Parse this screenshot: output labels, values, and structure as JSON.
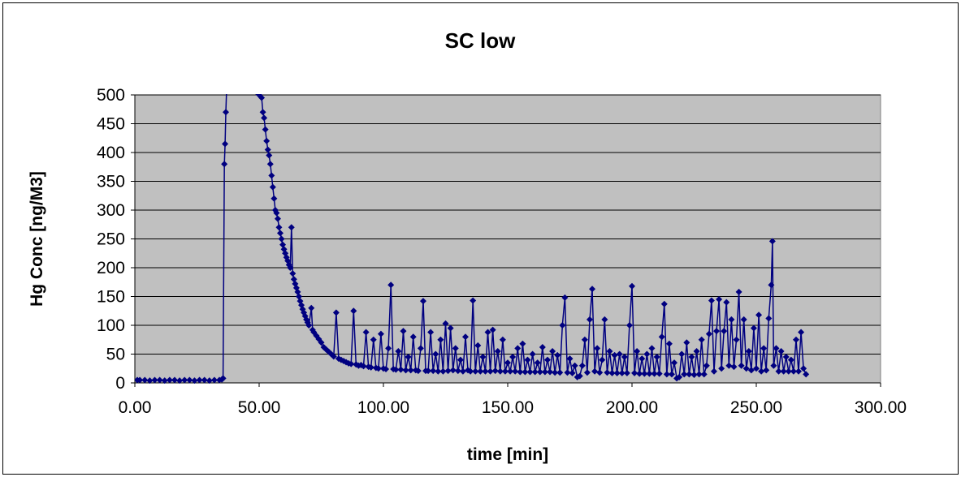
{
  "chart_data": {
    "type": "scatter",
    "title": "SC low",
    "xlabel": "time [min]",
    "ylabel": "Hg Conc [ng/M3]",
    "xlim": [
      0,
      300
    ],
    "ylim": [
      0,
      500
    ],
    "x_ticks": [
      "0.00",
      "50.00",
      "100.00",
      "150.00",
      "200.00",
      "250.00",
      "300.00"
    ],
    "y_ticks": [
      "0",
      "50",
      "100",
      "150",
      "200",
      "250",
      "300",
      "350",
      "400",
      "450",
      "500"
    ],
    "grid": "horizontal",
    "plot_background": "#c0c0c0",
    "series_color": "#000080",
    "marker": "diamond",
    "lines_connect_points": true,
    "series": [
      {
        "points": [
          [
            1,
            5
          ],
          [
            2,
            5
          ],
          [
            4,
            5
          ],
          [
            6,
            4
          ],
          [
            8,
            5
          ],
          [
            10,
            5
          ],
          [
            12,
            4
          ],
          [
            14,
            5
          ],
          [
            16,
            5
          ],
          [
            18,
            4
          ],
          [
            20,
            5
          ],
          [
            22,
            5
          ],
          [
            24,
            4
          ],
          [
            26,
            5
          ],
          [
            28,
            5
          ],
          [
            30,
            4
          ],
          [
            32,
            5
          ],
          [
            34,
            5
          ],
          [
            35,
            6
          ],
          [
            35.5,
            8
          ],
          [
            36,
            380
          ],
          [
            36.3,
            415
          ],
          [
            36.6,
            470
          ],
          [
            37,
            520
          ],
          [
            50,
            500
          ],
          [
            51,
            495
          ],
          [
            51.5,
            470
          ],
          [
            52,
            460
          ],
          [
            52.5,
            440
          ],
          [
            53,
            420
          ],
          [
            53.5,
            405
          ],
          [
            54,
            395
          ],
          [
            54.5,
            380
          ],
          [
            55,
            360
          ],
          [
            55.5,
            340
          ],
          [
            56,
            320
          ],
          [
            56.5,
            300
          ],
          [
            57,
            295
          ],
          [
            57.5,
            285
          ],
          [
            58,
            270
          ],
          [
            58.5,
            260
          ],
          [
            59,
            250
          ],
          [
            59.5,
            240
          ],
          [
            60,
            232
          ],
          [
            60.5,
            225
          ],
          [
            61,
            218
          ],
          [
            61.5,
            212
          ],
          [
            62,
            205
          ],
          [
            62.5,
            200
          ],
          [
            63,
            270
          ],
          [
            63.5,
            190
          ],
          [
            64,
            180
          ],
          [
            64.5,
            172
          ],
          [
            65,
            165
          ],
          [
            65.5,
            158
          ],
          [
            66,
            150
          ],
          [
            66.5,
            142
          ],
          [
            67,
            135
          ],
          [
            67.5,
            128
          ],
          [
            68,
            122
          ],
          [
            68.5,
            116
          ],
          [
            69,
            110
          ],
          [
            69.5,
            105
          ],
          [
            70,
            100
          ],
          [
            71,
            130
          ],
          [
            71.5,
            92
          ],
          [
            72,
            88
          ],
          [
            73,
            82
          ],
          [
            74,
            76
          ],
          [
            75,
            70
          ],
          [
            76,
            62
          ],
          [
            77,
            58
          ],
          [
            78,
            54
          ],
          [
            79,
            50
          ],
          [
            80,
            46
          ],
          [
            81,
            122
          ],
          [
            82,
            42
          ],
          [
            83,
            40
          ],
          [
            84,
            38
          ],
          [
            85,
            36
          ],
          [
            86,
            34
          ],
          [
            87,
            33
          ],
          [
            88,
            125
          ],
          [
            89,
            32
          ],
          [
            90,
            30
          ],
          [
            91,
            31
          ],
          [
            92,
            29
          ],
          [
            93,
            88
          ],
          [
            94,
            28
          ],
          [
            95,
            27
          ],
          [
            96,
            75
          ],
          [
            97,
            26
          ],
          [
            98,
            25
          ],
          [
            99,
            85
          ],
          [
            100,
            25
          ],
          [
            101,
            24
          ],
          [
            102,
            60
          ],
          [
            103,
            170
          ],
          [
            104,
            24
          ],
          [
            105,
            23
          ],
          [
            106,
            55
          ],
          [
            107,
            23
          ],
          [
            108,
            90
          ],
          [
            109,
            22
          ],
          [
            110,
            45
          ],
          [
            111,
            22
          ],
          [
            112,
            80
          ],
          [
            113,
            22
          ],
          [
            114,
            21
          ],
          [
            115,
            60
          ],
          [
            116,
            142
          ],
          [
            117,
            21
          ],
          [
            118,
            21
          ],
          [
            119,
            88
          ],
          [
            120,
            21
          ],
          [
            121,
            50
          ],
          [
            122,
            20
          ],
          [
            123,
            75
          ],
          [
            124,
            20
          ],
          [
            125,
            103
          ],
          [
            126,
            21
          ],
          [
            127,
            95
          ],
          [
            128,
            22
          ],
          [
            129,
            60
          ],
          [
            130,
            21
          ],
          [
            131,
            40
          ],
          [
            132,
            20
          ],
          [
            133,
            80
          ],
          [
            134,
            22
          ],
          [
            135,
            20
          ],
          [
            136,
            143
          ],
          [
            137,
            20
          ],
          [
            138,
            65
          ],
          [
            139,
            20
          ],
          [
            140,
            45
          ],
          [
            141,
            20
          ],
          [
            142,
            88
          ],
          [
            143,
            20
          ],
          [
            144,
            92
          ],
          [
            145,
            21
          ],
          [
            146,
            55
          ],
          [
            147,
            20
          ],
          [
            148,
            75
          ],
          [
            149,
            20
          ],
          [
            150,
            35
          ],
          [
            151,
            20
          ],
          [
            152,
            45
          ],
          [
            153,
            20
          ],
          [
            154,
            60
          ],
          [
            155,
            19
          ],
          [
            156,
            68
          ],
          [
            157,
            19
          ],
          [
            158,
            40
          ],
          [
            159,
            19
          ],
          [
            160,
            50
          ],
          [
            161,
            19
          ],
          [
            162,
            35
          ],
          [
            163,
            19
          ],
          [
            164,
            62
          ],
          [
            165,
            19
          ],
          [
            166,
            40
          ],
          [
            167,
            19
          ],
          [
            168,
            55
          ],
          [
            169,
            18
          ],
          [
            170,
            48
          ],
          [
            171,
            18
          ],
          [
            172,
            100
          ],
          [
            173,
            148
          ],
          [
            174,
            18
          ],
          [
            175,
            42
          ],
          [
            176,
            17
          ],
          [
            177,
            30
          ],
          [
            178,
            10
          ],
          [
            179,
            12
          ],
          [
            180,
            30
          ],
          [
            181,
            75
          ],
          [
            182,
            18
          ],
          [
            183,
            110
          ],
          [
            184,
            163
          ],
          [
            185,
            20
          ],
          [
            186,
            60
          ],
          [
            187,
            18
          ],
          [
            188,
            40
          ],
          [
            189,
            110
          ],
          [
            190,
            18
          ],
          [
            191,
            55
          ],
          [
            192,
            17
          ],
          [
            193,
            48
          ],
          [
            194,
            17
          ],
          [
            195,
            50
          ],
          [
            196,
            17
          ],
          [
            197,
            45
          ],
          [
            198,
            17
          ],
          [
            199,
            100
          ],
          [
            200,
            168
          ],
          [
            201,
            17
          ],
          [
            202,
            55
          ],
          [
            203,
            16
          ],
          [
            204,
            42
          ],
          [
            205,
            16
          ],
          [
            206,
            50
          ],
          [
            207,
            16
          ],
          [
            208,
            60
          ],
          [
            209,
            16
          ],
          [
            210,
            45
          ],
          [
            211,
            16
          ],
          [
            212,
            80
          ],
          [
            213,
            137
          ],
          [
            214,
            15
          ],
          [
            215,
            68
          ],
          [
            216,
            15
          ],
          [
            217,
            35
          ],
          [
            218,
            8
          ],
          [
            219,
            10
          ],
          [
            220,
            50
          ],
          [
            221,
            15
          ],
          [
            222,
            70
          ],
          [
            223,
            15
          ],
          [
            224,
            45
          ],
          [
            225,
            14
          ],
          [
            226,
            55
          ],
          [
            227,
            15
          ],
          [
            228,
            75
          ],
          [
            229,
            15
          ],
          [
            230,
            30
          ],
          [
            231,
            85
          ],
          [
            232,
            143
          ],
          [
            233,
            20
          ],
          [
            234,
            90
          ],
          [
            235,
            145
          ],
          [
            236,
            25
          ],
          [
            237,
            90
          ],
          [
            238,
            140
          ],
          [
            239,
            30
          ],
          [
            240,
            110
          ],
          [
            241,
            28
          ],
          [
            242,
            75
          ],
          [
            243,
            158
          ],
          [
            244,
            30
          ],
          [
            245,
            110
          ],
          [
            246,
            25
          ],
          [
            247,
            55
          ],
          [
            248,
            22
          ],
          [
            249,
            95
          ],
          [
            250,
            25
          ],
          [
            251,
            118
          ],
          [
            252,
            20
          ],
          [
            253,
            60
          ],
          [
            254,
            22
          ],
          [
            255,
            112
          ],
          [
            256,
            170
          ],
          [
            256.5,
            246
          ],
          [
            257,
            30
          ],
          [
            258,
            60
          ],
          [
            259,
            20
          ],
          [
            260,
            55
          ],
          [
            261,
            20
          ],
          [
            262,
            45
          ],
          [
            263,
            20
          ],
          [
            264,
            40
          ],
          [
            265,
            20
          ],
          [
            266,
            75
          ],
          [
            267,
            20
          ],
          [
            268,
            88
          ],
          [
            269,
            25
          ],
          [
            270,
            15
          ]
        ]
      }
    ]
  }
}
